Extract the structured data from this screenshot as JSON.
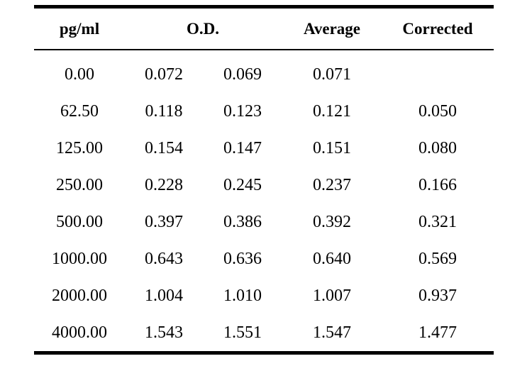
{
  "table": {
    "headers": {
      "concentration": "pg/ml",
      "od": "O.D.",
      "average": "Average",
      "corrected": "Corrected"
    },
    "rows": [
      {
        "conc": "0.00",
        "od1": "0.072",
        "od2": "0.069",
        "avg": "0.071",
        "corr": ""
      },
      {
        "conc": "62.50",
        "od1": "0.118",
        "od2": "0.123",
        "avg": "0.121",
        "corr": "0.050"
      },
      {
        "conc": "125.00",
        "od1": "0.154",
        "od2": "0.147",
        "avg": "0.151",
        "corr": "0.080"
      },
      {
        "conc": "250.00",
        "od1": "0.228",
        "od2": "0.245",
        "avg": "0.237",
        "corr": "0.166"
      },
      {
        "conc": "500.00",
        "od1": "0.397",
        "od2": "0.386",
        "avg": "0.392",
        "corr": "0.321"
      },
      {
        "conc": "1000.00",
        "od1": "0.643",
        "od2": "0.636",
        "avg": "0.640",
        "corr": "0.569"
      },
      {
        "conc": "2000.00",
        "od1": "1.004",
        "od2": "1.010",
        "avg": "1.007",
        "corr": "0.937"
      },
      {
        "conc": "4000.00",
        "od1": "1.543",
        "od2": "1.551",
        "avg": "1.547",
        "corr": "1.477"
      }
    ]
  }
}
